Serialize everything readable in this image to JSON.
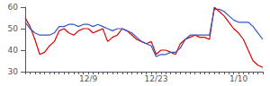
{
  "chart_data": {
    "type": "line",
    "categories": [
      null,
      null,
      null,
      null,
      null,
      null,
      null,
      null,
      null,
      null,
      null,
      null,
      null,
      "12/9",
      null,
      null,
      null,
      null,
      null,
      null,
      null,
      null,
      null,
      null,
      null,
      null,
      null,
      "12/23",
      null,
      null,
      null,
      null,
      null,
      null,
      null,
      null,
      null,
      null,
      null,
      null,
      null,
      null,
      null,
      null,
      "1/10",
      null,
      null,
      null,
      null,
      null
    ],
    "series": [
      {
        "color": "#dd0000",
        "values": [
          55,
          51,
          45,
          38,
          39,
          42,
          44,
          49,
          50,
          48,
          47,
          49,
          50,
          50,
          48,
          49,
          50,
          44,
          46,
          47,
          50,
          49,
          47,
          45,
          44,
          43,
          44,
          38,
          40,
          40,
          39,
          38,
          43,
          45,
          46,
          47,
          46,
          46,
          45,
          60,
          58,
          56,
          53,
          50,
          48,
          45,
          40,
          35,
          33,
          32
        ]
      },
      {
        "color": "#3355cc",
        "values": [
          53,
          50,
          48,
          47,
          47,
          47,
          48,
          51,
          51,
          52,
          52,
          51,
          52,
          52,
          51,
          52,
          51,
          50,
          49,
          50,
          50,
          49,
          48,
          46,
          44,
          43,
          42,
          37,
          38,
          38,
          39,
          39,
          41,
          45,
          47,
          47,
          47,
          47,
          47,
          59,
          59,
          58,
          56,
          54,
          53,
          53,
          53,
          51,
          48,
          45
        ]
      }
    ],
    "ylim": [
      30,
      60
    ],
    "yticks": [
      30,
      40,
      50,
      60
    ],
    "grid": false
  }
}
